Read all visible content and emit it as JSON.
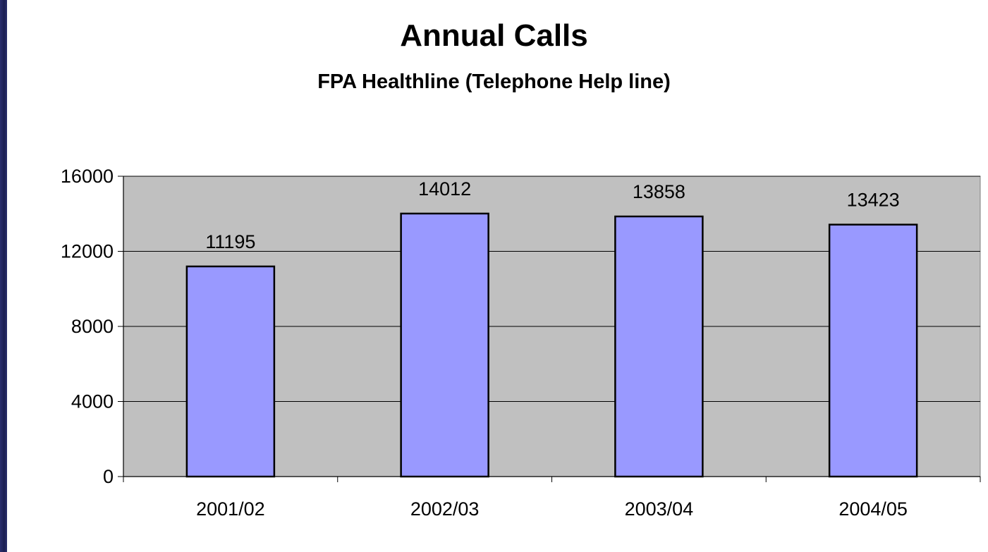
{
  "chart_data": {
    "type": "bar",
    "title": "Annual Calls",
    "subtitle": "FPA Healthline (Telephone Help line)",
    "categories": [
      "2001/02",
      "2002/03",
      "2003/04",
      "2004/05"
    ],
    "values": [
      11195,
      14012,
      13858,
      13423
    ],
    "data_labels": [
      "11195",
      "14012",
      "13858",
      "13423"
    ],
    "y_ticks": [
      0,
      4000,
      8000,
      12000,
      16000
    ],
    "ylim": [
      0,
      16000
    ],
    "xlabel": "",
    "ylabel": "",
    "grid": true,
    "legend": "none",
    "colors": {
      "bar_fill": "#9999ff",
      "bar_stroke": "#000000",
      "plot_background": "#c0c0c0",
      "gridline": "#000000",
      "slide_border": "#2a2f6e"
    }
  }
}
